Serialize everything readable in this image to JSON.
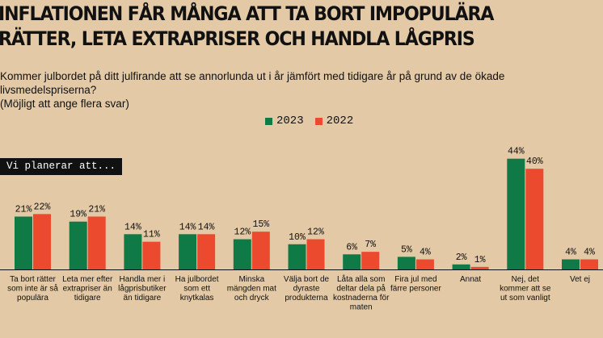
{
  "title": [
    "INFLATIONEN FÅR MÅNGA ATT TA BORT IMPOPULÄRA",
    "RÄTTER, LETA EXTRAPRISER OCH HANDLA LÅGPRIS"
  ],
  "question": [
    "Kommer julbordet på ditt julfirande att se annorlunda ut i år jämfört med tidigare år på grund av de ökade livsmedelspriserna?",
    "(Möjligt att ange flera svar)"
  ],
  "tag": "Vi planerar att...",
  "colors": {
    "background": "#e3c9a6",
    "series_2023": "#0f7a45",
    "series_2022": "#ec4a2e"
  },
  "chart_data": {
    "type": "bar",
    "categories": [
      [
        "Ta bort rätter",
        "som inte är så",
        "populära"
      ],
      [
        "Leta mer efter",
        "extrapriser än",
        "tidigare"
      ],
      [
        "Handla mer i",
        "lågprisbutiker",
        "än tidigare"
      ],
      [
        "Ha julbordet",
        "som ett",
        "knytkalas"
      ],
      [
        "Minska",
        "mängden mat",
        "och dryck"
      ],
      [
        "Välja bort de",
        "dyraste",
        "produkterna"
      ],
      [
        "Låta alla som",
        "deltar dela på",
        "kostnaderna för",
        "maten"
      ],
      [
        "Fira jul med",
        "färre personer"
      ],
      [
        "Annat"
      ],
      [
        "Nej, det",
        "kommer att se",
        "ut som vanligt"
      ],
      [
        "Vet ej"
      ]
    ],
    "series": [
      {
        "name": "2023",
        "values": [
          21,
          19,
          14,
          14,
          12,
          10,
          6,
          5,
          2,
          44,
          4
        ],
        "labels": [
          "21%",
          "19%",
          "14%",
          "14%",
          "12%",
          "10%",
          "6%",
          "5%",
          "2%",
          "44%",
          "4%"
        ]
      },
      {
        "name": "2022",
        "values": [
          22,
          21,
          11,
          14,
          15,
          12,
          7,
          4,
          1,
          40,
          4
        ],
        "labels": [
          "22%",
          "21%",
          "11%",
          "14%",
          "15%",
          "12%",
          "7%",
          "4%",
          "1%",
          "40%",
          "4%"
        ]
      }
    ],
    "unit": "%",
    "ylim": [
      0,
      44
    ],
    "grid": false,
    "legend": "top-center"
  }
}
